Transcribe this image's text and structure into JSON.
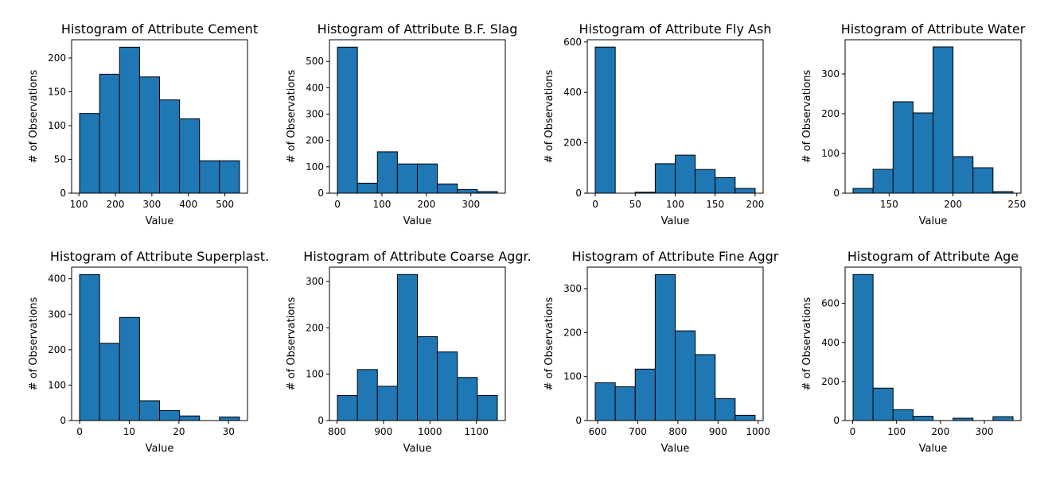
{
  "chart_data": [
    {
      "type": "histogram",
      "title": "Histogram of Attribute Cement",
      "xlabel": "Value",
      "ylabel": "# of Observations",
      "color": "#1f77b4",
      "bins": [
        102,
        156.75,
        211.5,
        266.25,
        321,
        375.75,
        430.5,
        485.25,
        540
      ],
      "values": [
        118,
        176,
        216,
        172,
        138,
        110,
        48,
        48
      ],
      "xlim": [
        80.1,
        561.9
      ],
      "ylim": [
        0,
        227
      ],
      "xticks": [
        100,
        200,
        300,
        400,
        500
      ],
      "yticks": [
        0,
        50,
        100,
        150,
        200
      ]
    },
    {
      "type": "histogram",
      "title": "Histogram of Attribute B.F. Slag",
      "xlabel": "Value",
      "ylabel": "# of Observations",
      "color": "#1f77b4",
      "bins": [
        0,
        44.925,
        89.85,
        134.775,
        179.7,
        224.625,
        269.55,
        314.475,
        359.4
      ],
      "values": [
        554,
        38,
        157,
        111,
        111,
        35,
        14,
        6
      ],
      "xlim": [
        -17.97,
        377.37
      ],
      "ylim": [
        0,
        582
      ],
      "xticks": [
        0,
        100,
        200,
        300
      ],
      "yticks": [
        0,
        100,
        200,
        300,
        400,
        500
      ]
    },
    {
      "type": "histogram",
      "title": "Histogram of Attribute Fly Ash",
      "xlabel": "Value",
      "ylabel": "# of Observations",
      "color": "#1f77b4",
      "bins": [
        0,
        25.0125,
        50.025,
        75.0375,
        100.05,
        125.0625,
        150.075,
        175.0875,
        200.1
      ],
      "values": [
        580,
        0,
        4,
        117,
        151,
        94,
        62,
        19
      ],
      "xlim": [
        -10.0,
        210.1
      ],
      "ylim": [
        0,
        609
      ],
      "xticks": [
        0,
        50,
        100,
        150,
        200
      ],
      "yticks": [
        0,
        200,
        400,
        600
      ]
    },
    {
      "type": "histogram",
      "title": "Histogram of Attribute Water",
      "xlabel": "Value",
      "ylabel": "# of Observations",
      "color": "#1f77b4",
      "bins": [
        121.8,
        137.45,
        153.1,
        168.75,
        184.4,
        200.05,
        215.7,
        231.35,
        247
      ],
      "values": [
        12,
        60,
        230,
        202,
        368,
        92,
        64,
        4
      ],
      "xlim": [
        115.54,
        253.26
      ],
      "ylim": [
        0,
        386
      ],
      "xticks": [
        150,
        200,
        250
      ],
      "yticks": [
        0,
        100,
        200,
        300
      ]
    },
    {
      "type": "histogram",
      "title": "Histogram of Attribute Superplast.",
      "xlabel": "Value",
      "ylabel": "# of Observations",
      "color": "#1f77b4",
      "bins": [
        0,
        4.025,
        8.05,
        12.075,
        16.1,
        20.125,
        24.15,
        28.175,
        32.2
      ],
      "values": [
        412,
        218,
        291,
        56,
        28,
        13,
        0,
        10
      ],
      "xlim": [
        -1.61,
        33.81
      ],
      "ylim": [
        0,
        433
      ],
      "xticks": [
        0,
        10,
        20,
        30
      ],
      "yticks": [
        0,
        100,
        200,
        300,
        400
      ]
    },
    {
      "type": "histogram",
      "title": "Histogram of Attribute Coarse Aggr.",
      "xlabel": "Value",
      "ylabel": "# of Observations",
      "color": "#1f77b4",
      "bins": [
        801,
        844,
        887,
        930,
        973,
        1016,
        1059,
        1102,
        1145
      ],
      "values": [
        54,
        110,
        74,
        315,
        181,
        148,
        93,
        54
      ],
      "xlim": [
        783.8,
        1162.2
      ],
      "ylim": [
        0,
        331
      ],
      "xticks": [
        800,
        900,
        1000,
        1100
      ],
      "yticks": [
        0,
        100,
        200,
        300
      ]
    },
    {
      "type": "histogram",
      "title": "Histogram of Attribute Fine Aggr",
      "xlabel": "Value",
      "ylabel": "# of Observations",
      "color": "#1f77b4",
      "bins": [
        594,
        643.825,
        693.65,
        743.475,
        793.3,
        843.125,
        892.95,
        942.775,
        992.6
      ],
      "values": [
        86,
        77,
        117,
        332,
        204,
        150,
        50,
        12
      ],
      "xlim": [
        574.07,
        1012.53
      ],
      "ylim": [
        0,
        349
      ],
      "xticks": [
        600,
        700,
        800,
        900,
        1000
      ],
      "yticks": [
        0,
        100,
        200,
        300
      ]
    },
    {
      "type": "histogram",
      "title": "Histogram of Attribute Age",
      "xlabel": "Value",
      "ylabel": "# of Observations",
      "color": "#1f77b4",
      "bins": [
        1,
        46.5,
        92,
        137.5,
        183,
        228.5,
        274,
        319.5,
        365
      ],
      "values": [
        748,
        166,
        56,
        22,
        0,
        12,
        0,
        20
      ],
      "xlim": [
        -17.2,
        383.2
      ],
      "ylim": [
        0,
        786
      ],
      "xticks": [
        0,
        100,
        200,
        300
      ],
      "yticks": [
        0,
        200,
        400,
        600
      ]
    }
  ]
}
